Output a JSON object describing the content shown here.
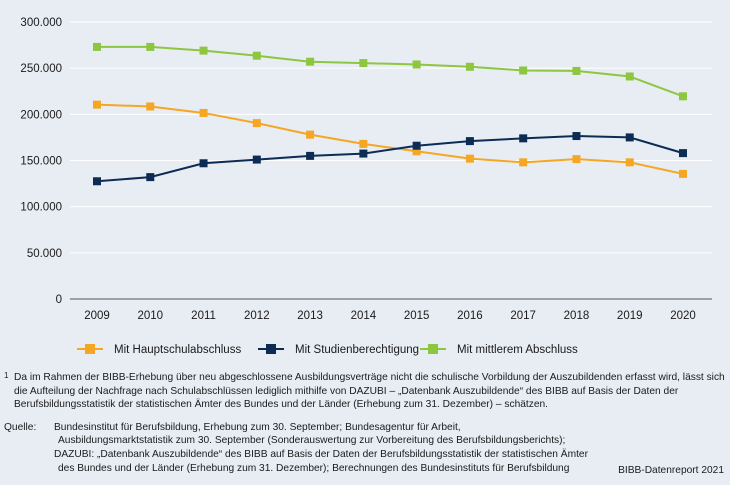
{
  "chart_data": {
    "type": "line",
    "categories": [
      "2009",
      "2010",
      "2011",
      "2012",
      "2013",
      "2014",
      "2015",
      "2016",
      "2017",
      "2018",
      "2019",
      "2020"
    ],
    "ylim": [
      0,
      300000
    ],
    "yticks": [
      0,
      50000,
      100000,
      150000,
      200000,
      250000,
      300000
    ],
    "ytick_labels": [
      "0",
      "50.000",
      "100.000",
      "150.000",
      "200.000",
      "250.000",
      "300.000"
    ],
    "grid": true,
    "legend_position": "bottom",
    "series": [
      {
        "name": "Mit Hauptschulabschluss",
        "color": "#f5a623",
        "values": [
          210500,
          208500,
          201500,
          190500,
          178000,
          168000,
          160000,
          152000,
          148000,
          151500,
          148000,
          135500
        ]
      },
      {
        "name": "Mit Studienberechtigung",
        "color": "#0d2c54",
        "values": [
          127500,
          132000,
          147000,
          151000,
          155000,
          157500,
          166000,
          171000,
          174000,
          176500,
          175000,
          158000
        ]
      },
      {
        "name": "Mit mittlerem Abschluss",
        "color": "#8dc63f",
        "values": [
          273000,
          273000,
          269000,
          263500,
          257000,
          255500,
          254000,
          251500,
          247500,
          247000,
          241000,
          219500
        ]
      }
    ]
  },
  "footnote": {
    "marker": "1",
    "text": "Da im Rahmen der BIBB-Erhebung über neu abgeschlossene Ausbildungsverträge nicht die schulische Vorbildung der Auszubildenden erfasst wird, lässt sich die Aufteilung der Nachfrage nach Schulabschlüssen lediglich mithilfe von DAZUBI – „Datenbank Auszubildende“ des BIBB auf Basis der Daten der Berufsbildungsstatistik der statistischen Ämter des Bundes und der Länder (Erhebung zum 31. Dezember) – schätzen."
  },
  "source": {
    "label": "Quelle:",
    "lines": [
      "Bundesinstitut für Berufsbildung, Erhebung zum 30. September; Bundesagentur für Arbeit,",
      "Ausbildungsmarktstatistik zum 30. September (Sonderauswertung zur Vorbereitung des Berufsbildungsberichts);",
      "DAZUBI: „Datenbank Auszubildende“ des BIBB auf Basis der Daten der Berufsbildungsstatistik der statistischen Ämter",
      "des Bundes und der Länder (Erhebung zum 31. Dezember); Berechnungen des Bundesinstituts für Berufsbildung"
    ]
  },
  "credit": "BIBB-Datenreport 2021"
}
